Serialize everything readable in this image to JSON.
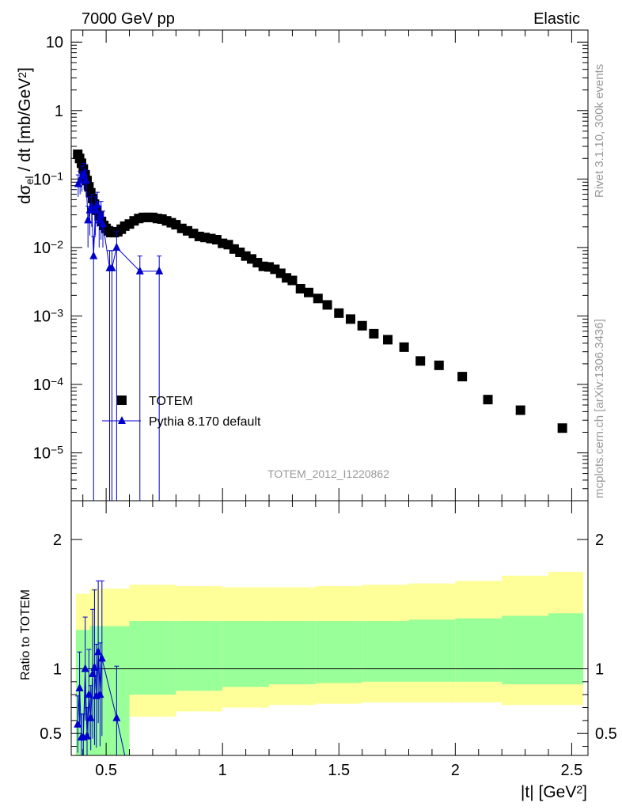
{
  "header": {
    "energy_label": "7000 GeV pp",
    "process_label": "Elastic"
  },
  "side_labels": {
    "rivet": "Rivet 3.1.10,  300k events",
    "mcplots": "mcplots.cern.ch [arXiv:1306.3436]"
  },
  "colors": {
    "data_marker": "#000000",
    "mc_line": "#0000cc",
    "band_inner": "#99ff99",
    "band_outer": "#ffff99"
  },
  "chart_data": [
    {
      "type": "scatter",
      "panel": "main",
      "ylabel": "dσel / dt [mb/GeV2]",
      "yscale": "log",
      "xlim": [
        0.35,
        2.57
      ],
      "ylim": [
        2e-06,
        15
      ],
      "y_ticks": [
        {
          "v": 1e-05,
          "m": "10",
          "e": "−5"
        },
        {
          "v": 0.0001,
          "m": "10",
          "e": "−4"
        },
        {
          "v": 0.001,
          "m": "10",
          "e": "−3"
        },
        {
          "v": 0.01,
          "m": "10",
          "e": "−2"
        },
        {
          "v": 0.1,
          "m": "10",
          "e": "−1"
        },
        {
          "v": 1,
          "m": "1",
          "e": ""
        },
        {
          "v": 10,
          "m": "10",
          "e": ""
        }
      ],
      "watermark": "TOTEM_2012_I1220862",
      "legend_position": "center-left",
      "series": [
        {
          "name": "TOTEM",
          "marker": "square",
          "x": [
            0.378,
            0.386,
            0.394,
            0.402,
            0.41,
            0.418,
            0.426,
            0.434,
            0.442,
            0.45,
            0.46,
            0.47,
            0.48,
            0.49,
            0.5,
            0.51,
            0.52,
            0.535,
            0.55,
            0.565,
            0.58,
            0.6,
            0.62,
            0.64,
            0.66,
            0.68,
            0.7,
            0.72,
            0.74,
            0.76,
            0.78,
            0.8,
            0.825,
            0.85,
            0.875,
            0.9,
            0.925,
            0.95,
            0.975,
            1.0,
            1.025,
            1.05,
            1.075,
            1.1,
            1.125,
            1.15,
            1.175,
            1.2,
            1.225,
            1.25,
            1.275,
            1.3,
            1.335,
            1.37,
            1.41,
            1.45,
            1.5,
            1.55,
            1.6,
            1.65,
            1.71,
            1.78,
            1.85,
            1.93,
            2.03,
            2.14,
            2.28,
            2.46
          ],
          "y": [
            0.23,
            0.2,
            0.17,
            0.14,
            0.115,
            0.095,
            0.077,
            0.063,
            0.052,
            0.043,
            0.035,
            0.029,
            0.024,
            0.021,
            0.019,
            0.0175,
            0.0165,
            0.0165,
            0.017,
            0.0185,
            0.0205,
            0.022,
            0.0245,
            0.0265,
            0.0275,
            0.0275,
            0.0275,
            0.0265,
            0.026,
            0.0245,
            0.023,
            0.0215,
            0.019,
            0.0175,
            0.016,
            0.0145,
            0.014,
            0.0135,
            0.013,
            0.0115,
            0.011,
            0.0095,
            0.0085,
            0.0075,
            0.0068,
            0.006,
            0.0053,
            0.0052,
            0.0048,
            0.0042,
            0.0036,
            0.0033,
            0.0025,
            0.0022,
            0.0018,
            0.00145,
            0.0011,
            0.0009,
            0.00072,
            0.00055,
            0.00045,
            0.00035,
            0.00022,
            0.00019,
            0.00013,
            6e-05,
            4.2e-05,
            2.3e-05
          ]
        },
        {
          "name": "Pythia 8.170 default",
          "marker": "triangle",
          "x": [
            0.38,
            0.388,
            0.396,
            0.405,
            0.414,
            0.422,
            0.43,
            0.438,
            0.446,
            0.454,
            0.462,
            0.47,
            0.478,
            0.486,
            0.515,
            0.525,
            0.545,
            0.645,
            0.728
          ],
          "y": [
            0.085,
            0.095,
            0.11,
            0.12,
            0.095,
            0.025,
            0.035,
            0.04,
            0.0075,
            0.035,
            0.042,
            0.025,
            0.03,
            0.022,
            0.005,
            0.005,
            0.01,
            0.0045,
            0.0045
          ],
          "yerr_low": [
            0.03,
            0.035,
            0.045,
            0.05,
            0.04,
            0.015,
            0.02,
            0.02,
            0.007,
            0.02,
            0.022,
            0.015,
            0.017,
            0.012,
            0.004,
            0.004,
            0.007,
            0.003,
            0.003
          ],
          "yerr_high": [
            0.03,
            0.035,
            0.045,
            0.05,
            0.04,
            0.015,
            0.02,
            0.02,
            0.007,
            0.02,
            0.022,
            0.015,
            0.017,
            0.012,
            0.004,
            0.004,
            0.007,
            0.003,
            0.003
          ],
          "yerr_low_to_axis": [
            false,
            false,
            false,
            false,
            false,
            false,
            false,
            false,
            true,
            false,
            false,
            false,
            false,
            false,
            true,
            true,
            true,
            true,
            true
          ]
        }
      ]
    },
    {
      "type": "line",
      "panel": "ratio",
      "ylabel": "Ratio to TOTEM",
      "xlabel": "|t| [GeV2]",
      "xlim": [
        0.35,
        2.57
      ],
      "ylim": [
        0.33,
        2.3
      ],
      "x_ticks": [
        "0.5",
        "1",
        "1.5",
        "2",
        "2.5"
      ],
      "x_tick_values": [
        0.5,
        1.0,
        1.5,
        2.0,
        2.5
      ],
      "y_ticks": [
        "0.5",
        "1",
        "2"
      ],
      "y_tick_values": [
        0.5,
        1,
        2
      ],
      "reference_line": 1,
      "bands": {
        "edges": [
          0.37,
          0.43,
          0.6,
          0.8,
          1.0,
          1.2,
          1.4,
          1.6,
          1.8,
          2.0,
          2.2,
          2.4,
          2.55
        ],
        "outer_low": [
          0.33,
          0.33,
          0.63,
          0.67,
          0.7,
          0.72,
          0.73,
          0.74,
          0.74,
          0.74,
          0.72,
          0.72
        ],
        "outer_high": [
          1.58,
          1.62,
          1.65,
          1.64,
          1.63,
          1.63,
          1.64,
          1.65,
          1.66,
          1.68,
          1.72,
          1.75
        ],
        "inner_low": [
          0.33,
          0.33,
          0.8,
          0.83,
          0.86,
          0.88,
          0.89,
          0.9,
          0.9,
          0.9,
          0.88,
          0.88
        ],
        "inner_high": [
          1.3,
          1.33,
          1.37,
          1.37,
          1.37,
          1.37,
          1.37,
          1.37,
          1.38,
          1.39,
          1.41,
          1.43
        ]
      },
      "series": [
        {
          "name": "Pythia 8.170 default",
          "x": [
            0.378,
            0.386,
            0.394,
            0.402,
            0.41,
            0.418,
            0.426,
            0.434,
            0.442,
            0.45,
            0.458,
            0.466,
            0.474,
            0.482,
            0.545
          ],
          "y": [
            0.57,
            0.85,
            0.47,
            0.47,
            1.0,
            0.48,
            0.8,
            0.62,
            0.96,
            1.01,
            0.79,
            1.13,
            0.8,
            1.08,
            0.62
          ],
          "yerr": [
            0.22,
            0.28,
            0.18,
            0.18,
            0.4,
            0.22,
            0.35,
            0.25,
            0.5,
            0.6,
            0.4,
            0.55,
            0.4,
            0.6,
            0.4
          ]
        }
      ]
    }
  ]
}
